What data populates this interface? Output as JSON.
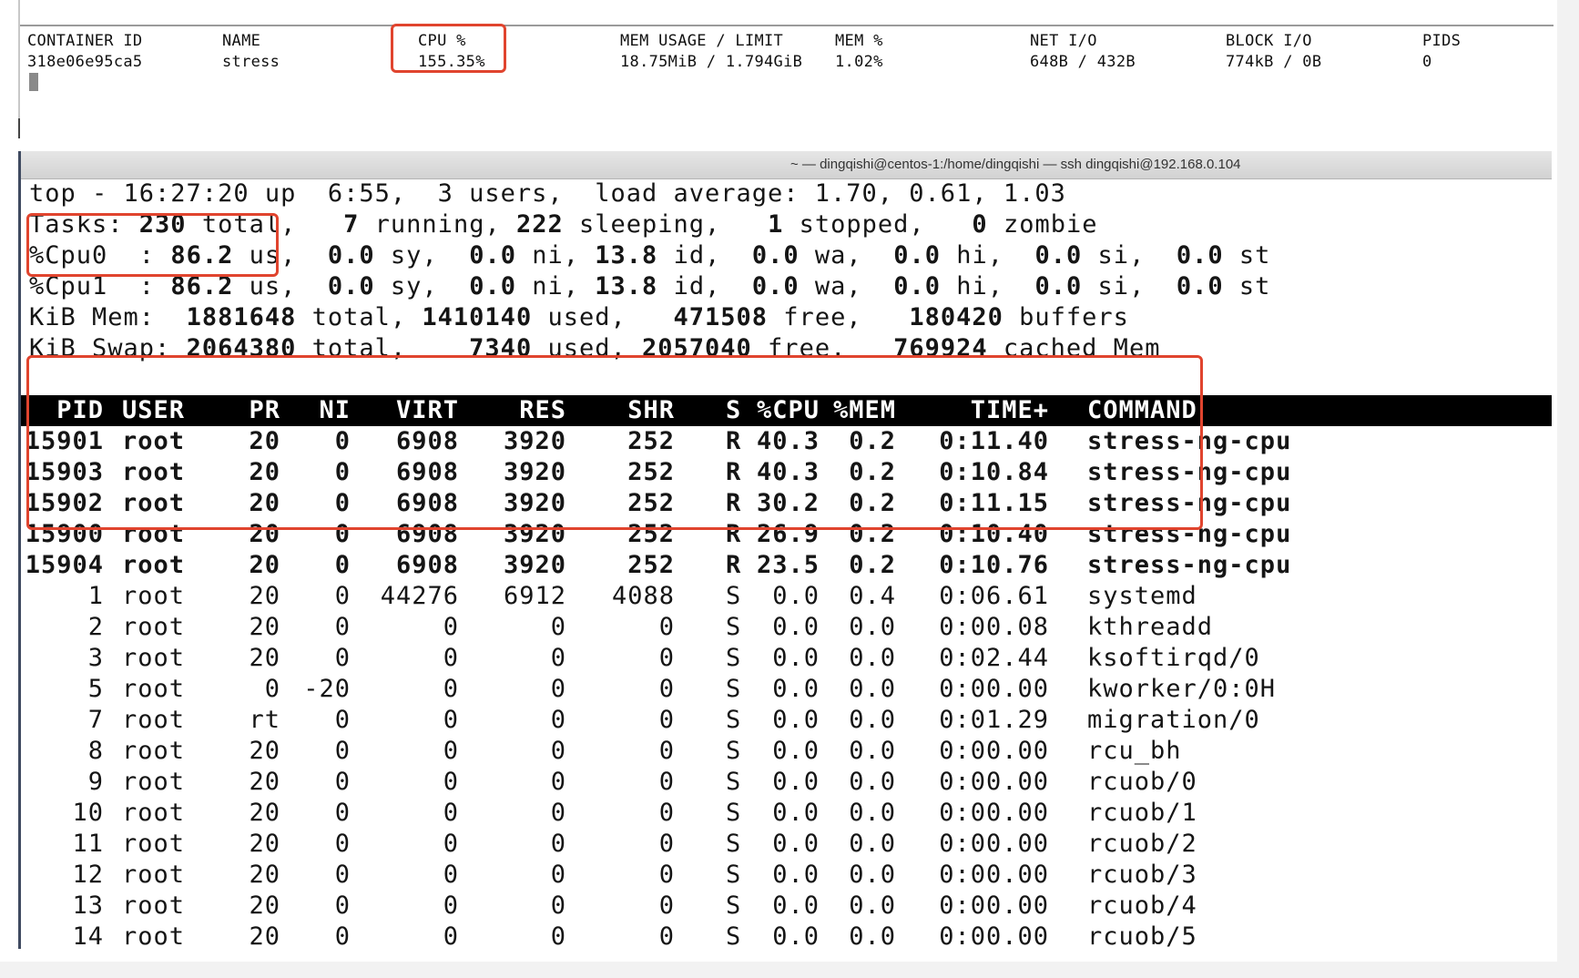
{
  "docker_stats": {
    "headers": {
      "container_id": "CONTAINER ID",
      "name": "NAME",
      "cpu": "CPU %",
      "mem_usage": "MEM USAGE / LIMIT",
      "mem_pct": "MEM %",
      "net_io": "NET I/O",
      "block_io": "BLOCK I/O",
      "pids": "PIDS"
    },
    "row": {
      "container_id": "318e06e95ca5",
      "name": "stress",
      "cpu": "155.35%",
      "mem_usage": "18.75MiB / 1.794GiB",
      "mem_pct": "1.02%",
      "net_io": "648B / 432B",
      "block_io": "774kB / 0B",
      "pids": "0"
    }
  },
  "ssh_window": {
    "title": "~ — dingqishi@centos-1:/home/dingqishi — ssh dingqishi@192.168.0.104"
  },
  "top_summary": {
    "line1": "top - 16:27:20 up  6:55,  3 users,  load average: 1.70, 0.61, 1.03",
    "tasks": {
      "label": "Tasks: ",
      "total": "230",
      "total_lbl": " total,   ",
      "running": "7",
      "running_lbl": " running, ",
      "sleeping": "222",
      "sleeping_lbl": " sleeping,   ",
      "stopped": "1",
      "stopped_lbl": " stopped,   ",
      "zombie": "0",
      "zombie_lbl": " zombie"
    },
    "cpu0": {
      "label": "%Cpu0  : ",
      "us": "86.2",
      "sy": "0.0",
      "ni": "0.0",
      "id": "13.8",
      "wa": "0.0",
      "hi": "0.0",
      "si": "0.0",
      "st": "0.0"
    },
    "cpu1": {
      "label": "%Cpu1  : ",
      "us": "86.2",
      "sy": "0.0",
      "ni": "0.0",
      "id": "13.8",
      "wa": "0.0",
      "hi": "0.0",
      "si": "0.0",
      "st": "0.0"
    },
    "cpu_suffix": {
      "us": " us,  ",
      "sy": " sy,  ",
      "ni": " ni, ",
      "id": " id,  ",
      "wa": " wa,  ",
      "hi": " hi,  ",
      "si": " si,  ",
      "st": " st"
    },
    "mem": {
      "label": "KiB Mem:  ",
      "total": "1881648",
      "total_lbl": " total, ",
      "used": "1410140",
      "used_lbl": " used,  ",
      "free": " 471508",
      "free_lbl": " free,  ",
      "buffers": " 180420",
      "buffers_lbl": " buffers"
    },
    "swap": {
      "label": "KiB Swap: ",
      "total": "2064380",
      "total_lbl": " total, ",
      "used": "   7340",
      "used_lbl": " used, ",
      "free": "2057040",
      "free_lbl": " free.  ",
      "cached": " 769924",
      "cached_lbl": " cached Mem"
    }
  },
  "process_table": {
    "headers": {
      "pid": "PID",
      "user": "USER",
      "pr": "PR",
      "ni": "NI",
      "virt": "VIRT",
      "res": "RES",
      "shr": "SHR",
      "s": "S",
      "cpu": "%CPU",
      "mem": "%MEM",
      "time": "TIME+",
      "command": "COMMAND"
    },
    "rows": [
      {
        "pid": "15901",
        "user": "root",
        "pr": "20",
        "ni": "0",
        "virt": "6908",
        "res": "3920",
        "shr": "252",
        "s": "R",
        "cpu": "40.3",
        "mem": "0.2",
        "time": "0:11.40",
        "command": "stress-ng-cpu",
        "bold": true
      },
      {
        "pid": "15903",
        "user": "root",
        "pr": "20",
        "ni": "0",
        "virt": "6908",
        "res": "3920",
        "shr": "252",
        "s": "R",
        "cpu": "40.3",
        "mem": "0.2",
        "time": "0:10.84",
        "command": "stress-ng-cpu",
        "bold": true
      },
      {
        "pid": "15902",
        "user": "root",
        "pr": "20",
        "ni": "0",
        "virt": "6908",
        "res": "3920",
        "shr": "252",
        "s": "R",
        "cpu": "30.2",
        "mem": "0.2",
        "time": "0:11.15",
        "command": "stress-ng-cpu",
        "bold": true
      },
      {
        "pid": "15900",
        "user": "root",
        "pr": "20",
        "ni": "0",
        "virt": "6908",
        "res": "3920",
        "shr": "252",
        "s": "R",
        "cpu": "26.9",
        "mem": "0.2",
        "time": "0:10.40",
        "command": "stress-ng-cpu",
        "bold": true
      },
      {
        "pid": "15904",
        "user": "root",
        "pr": "20",
        "ni": "0",
        "virt": "6908",
        "res": "3920",
        "shr": "252",
        "s": "R",
        "cpu": "23.5",
        "mem": "0.2",
        "time": "0:10.76",
        "command": "stress-ng-cpu",
        "bold": true
      },
      {
        "pid": "1",
        "user": "root",
        "pr": "20",
        "ni": "0",
        "virt": "44276",
        "res": "6912",
        "shr": "4088",
        "s": "S",
        "cpu": "0.0",
        "mem": "0.4",
        "time": "0:06.61",
        "command": "systemd",
        "bold": false
      },
      {
        "pid": "2",
        "user": "root",
        "pr": "20",
        "ni": "0",
        "virt": "0",
        "res": "0",
        "shr": "0",
        "s": "S",
        "cpu": "0.0",
        "mem": "0.0",
        "time": "0:00.08",
        "command": "kthreadd",
        "bold": false
      },
      {
        "pid": "3",
        "user": "root",
        "pr": "20",
        "ni": "0",
        "virt": "0",
        "res": "0",
        "shr": "0",
        "s": "S",
        "cpu": "0.0",
        "mem": "0.0",
        "time": "0:02.44",
        "command": "ksoftirqd/0",
        "bold": false
      },
      {
        "pid": "5",
        "user": "root",
        "pr": "0",
        "ni": "-20",
        "virt": "0",
        "res": "0",
        "shr": "0",
        "s": "S",
        "cpu": "0.0",
        "mem": "0.0",
        "time": "0:00.00",
        "command": "kworker/0:0H",
        "bold": false
      },
      {
        "pid": "7",
        "user": "root",
        "pr": "rt",
        "ni": "0",
        "virt": "0",
        "res": "0",
        "shr": "0",
        "s": "S",
        "cpu": "0.0",
        "mem": "0.0",
        "time": "0:01.29",
        "command": "migration/0",
        "bold": false
      },
      {
        "pid": "8",
        "user": "root",
        "pr": "20",
        "ni": "0",
        "virt": "0",
        "res": "0",
        "shr": "0",
        "s": "S",
        "cpu": "0.0",
        "mem": "0.0",
        "time": "0:00.00",
        "command": "rcu_bh",
        "bold": false
      },
      {
        "pid": "9",
        "user": "root",
        "pr": "20",
        "ni": "0",
        "virt": "0",
        "res": "0",
        "shr": "0",
        "s": "S",
        "cpu": "0.0",
        "mem": "0.0",
        "time": "0:00.00",
        "command": "rcuob/0",
        "bold": false
      },
      {
        "pid": "10",
        "user": "root",
        "pr": "20",
        "ni": "0",
        "virt": "0",
        "res": "0",
        "shr": "0",
        "s": "S",
        "cpu": "0.0",
        "mem": "0.0",
        "time": "0:00.00",
        "command": "rcuob/1",
        "bold": false
      },
      {
        "pid": "11",
        "user": "root",
        "pr": "20",
        "ni": "0",
        "virt": "0",
        "res": "0",
        "shr": "0",
        "s": "S",
        "cpu": "0.0",
        "mem": "0.0",
        "time": "0:00.00",
        "command": "rcuob/2",
        "bold": false
      },
      {
        "pid": "12",
        "user": "root",
        "pr": "20",
        "ni": "0",
        "virt": "0",
        "res": "0",
        "shr": "0",
        "s": "S",
        "cpu": "0.0",
        "mem": "0.0",
        "time": "0:00.00",
        "command": "rcuob/3",
        "bold": false
      },
      {
        "pid": "13",
        "user": "root",
        "pr": "20",
        "ni": "0",
        "virt": "0",
        "res": "0",
        "shr": "0",
        "s": "S",
        "cpu": "0.0",
        "mem": "0.0",
        "time": "0:00.00",
        "command": "rcuob/4",
        "bold": false
      },
      {
        "pid": "14",
        "user": "root",
        "pr": "20",
        "ni": "0",
        "virt": "0",
        "res": "0",
        "shr": "0",
        "s": "S",
        "cpu": "0.0",
        "mem": "0.0",
        "time": "0:00.00",
        "command": "rcuob/5",
        "bold": false
      }
    ]
  },
  "colors": {
    "highlight": "#e0442e",
    "terminal_text": "#151515",
    "header_bg": "#000000",
    "header_text": "#ffffff"
  }
}
